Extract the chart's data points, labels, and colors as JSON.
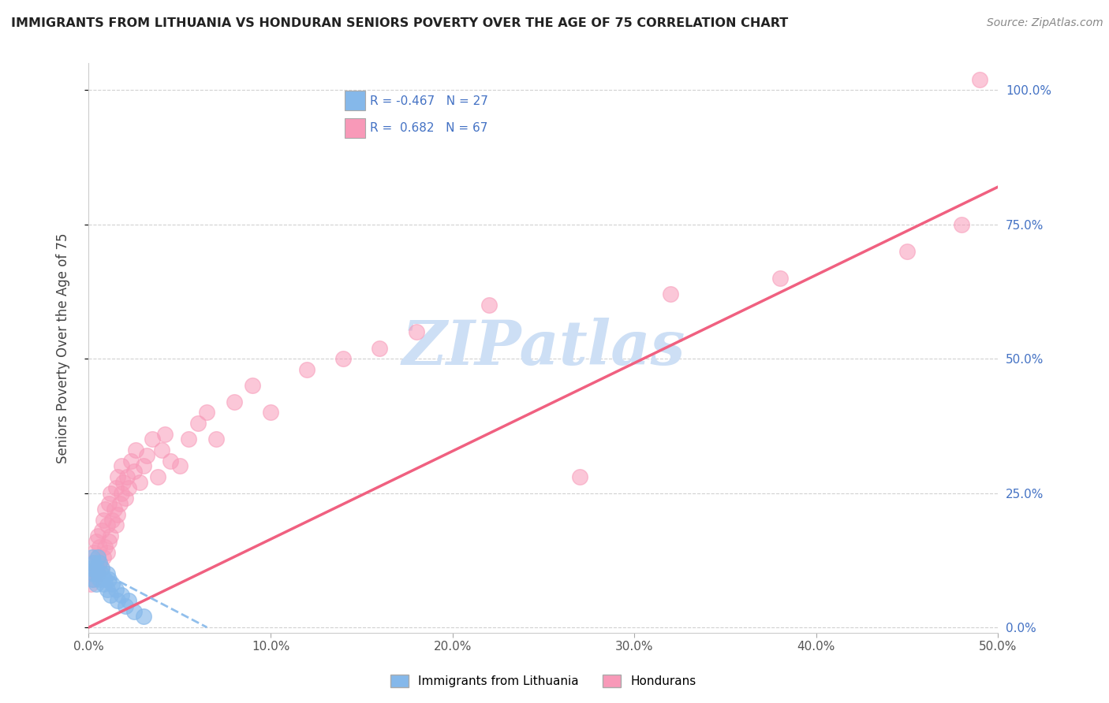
{
  "title": "IMMIGRANTS FROM LITHUANIA VS HONDURAN SENIORS POVERTY OVER THE AGE OF 75 CORRELATION CHART",
  "source": "Source: ZipAtlas.com",
  "ylabel": "Seniors Poverty Over the Age of 75",
  "legend_label1": "Immigrants from Lithuania",
  "legend_label2": "Hondurans",
  "r1": -0.467,
  "n1": 27,
  "r2": 0.682,
  "n2": 67,
  "color1": "#85b8ea",
  "color2": "#f899b8",
  "trendline1_color": "#85b8ea",
  "trendline2_color": "#f06080",
  "watermark": "ZIPatlas",
  "watermark_color": "#cddff5",
  "xlim": [
    0.0,
    0.5
  ],
  "ylim": [
    -0.01,
    1.05
  ],
  "xtick_vals": [
    0.0,
    0.1,
    0.2,
    0.3,
    0.4,
    0.5
  ],
  "ytick_vals": [
    0.0,
    0.25,
    0.5,
    0.75,
    1.0
  ],
  "background_color": "#ffffff",
  "grid_color": "#cccccc",
  "scatter1_x": [
    0.001,
    0.002,
    0.002,
    0.003,
    0.003,
    0.004,
    0.004,
    0.005,
    0.005,
    0.006,
    0.006,
    0.007,
    0.007,
    0.008,
    0.009,
    0.01,
    0.01,
    0.011,
    0.012,
    0.013,
    0.015,
    0.016,
    0.018,
    0.02,
    0.022,
    0.025,
    0.03
  ],
  "scatter1_y": [
    0.11,
    0.09,
    0.13,
    0.1,
    0.12,
    0.08,
    0.11,
    0.1,
    0.13,
    0.09,
    0.12,
    0.1,
    0.11,
    0.08,
    0.09,
    0.1,
    0.07,
    0.09,
    0.06,
    0.08,
    0.07,
    0.05,
    0.06,
    0.04,
    0.05,
    0.03,
    0.02
  ],
  "scatter2_x": [
    0.001,
    0.002,
    0.002,
    0.003,
    0.003,
    0.004,
    0.004,
    0.005,
    0.005,
    0.005,
    0.006,
    0.006,
    0.007,
    0.007,
    0.008,
    0.008,
    0.009,
    0.009,
    0.01,
    0.01,
    0.011,
    0.011,
    0.012,
    0.012,
    0.013,
    0.014,
    0.015,
    0.015,
    0.016,
    0.016,
    0.017,
    0.018,
    0.018,
    0.019,
    0.02,
    0.021,
    0.022,
    0.023,
    0.025,
    0.026,
    0.028,
    0.03,
    0.032,
    0.035,
    0.038,
    0.04,
    0.042,
    0.045,
    0.05,
    0.055,
    0.06,
    0.065,
    0.07,
    0.08,
    0.09,
    0.1,
    0.12,
    0.14,
    0.16,
    0.18,
    0.22,
    0.27,
    0.32,
    0.38,
    0.45,
    0.48,
    0.49
  ],
  "scatter2_y": [
    0.08,
    0.1,
    0.12,
    0.09,
    0.14,
    0.11,
    0.16,
    0.1,
    0.13,
    0.17,
    0.12,
    0.15,
    0.11,
    0.18,
    0.13,
    0.2,
    0.15,
    0.22,
    0.14,
    0.19,
    0.16,
    0.23,
    0.17,
    0.25,
    0.2,
    0.22,
    0.19,
    0.26,
    0.21,
    0.28,
    0.23,
    0.25,
    0.3,
    0.27,
    0.24,
    0.28,
    0.26,
    0.31,
    0.29,
    0.33,
    0.27,
    0.3,
    0.32,
    0.35,
    0.28,
    0.33,
    0.36,
    0.31,
    0.3,
    0.35,
    0.38,
    0.4,
    0.35,
    0.42,
    0.45,
    0.4,
    0.48,
    0.5,
    0.52,
    0.55,
    0.6,
    0.28,
    0.62,
    0.65,
    0.7,
    0.75,
    1.02
  ],
  "trendline2_x": [
    0.0,
    0.5
  ],
  "trendline2_y": [
    0.0,
    0.82
  ],
  "trendline1_x_start": 0.0,
  "trendline1_x_end": 0.065,
  "trendline1_y_start": 0.115,
  "trendline1_y_end": 0.0
}
